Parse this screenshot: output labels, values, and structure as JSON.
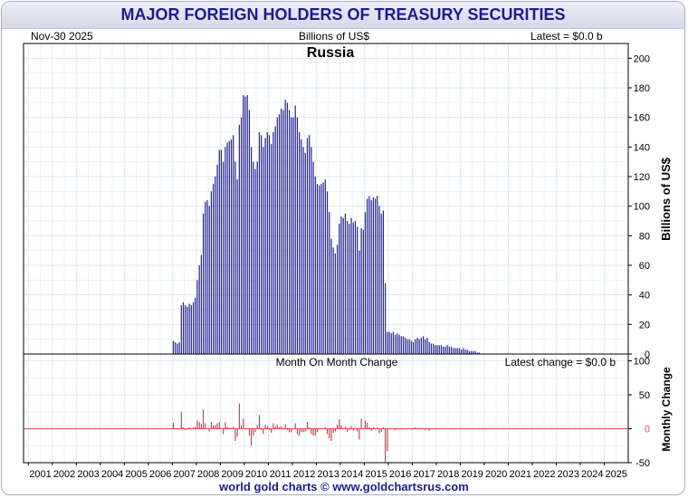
{
  "title": "MAJOR FOREIGN HOLDERS OF TREASURY SECURITIES",
  "date_label": "Nov-30  2025",
  "units_label": "Billions of US$",
  "latest_label": "Latest = $0.0 b",
  "footer": "world gold charts © www.goldchartsrus.com",
  "colors": {
    "bars": "#1c1cb4",
    "change": "#d42020",
    "zero_line": "#e05050",
    "title": "#1c1c8c"
  },
  "chart_data": [
    {
      "type": "bar",
      "title": "Russia",
      "ylabel": "Billions of US$",
      "ylim": [
        0,
        210
      ],
      "yticks": [
        0,
        20,
        40,
        60,
        80,
        100,
        120,
        140,
        160,
        180,
        200
      ],
      "x_start_year": 2000.8,
      "x_end_year": 2026.0,
      "bar_step_months": 1,
      "series_start": 2007.0,
      "values": [
        9,
        8,
        7,
        8,
        33,
        35,
        33,
        32,
        34,
        33,
        35,
        38,
        50,
        60,
        67,
        95,
        103,
        104,
        100,
        110,
        115,
        120,
        128,
        138,
        138,
        130,
        140,
        143,
        144,
        145,
        148,
        130,
        118,
        155,
        160,
        175,
        174,
        175,
        165,
        140,
        130,
        125,
        130,
        150,
        148,
        140,
        146,
        150,
        148,
        142,
        150,
        154,
        160,
        162,
        166,
        165,
        172,
        170,
        165,
        160,
        160,
        168,
        160,
        150,
        145,
        140,
        136,
        146,
        148,
        140,
        130,
        120,
        115,
        114,
        115,
        116,
        118,
        110,
        96,
        78,
        72,
        68,
        74,
        88,
        93,
        92,
        95,
        90,
        88,
        92,
        89,
        90,
        86,
        70,
        85,
        84,
        96,
        105,
        107,
        104,
        106,
        105,
        107,
        100,
        95,
        97,
        48,
        15,
        15,
        14,
        15,
        13,
        14,
        13,
        12,
        12,
        11,
        10,
        10,
        9,
        8,
        10,
        11,
        10,
        11,
        12,
        10,
        11,
        8,
        7,
        7,
        6,
        6,
        6,
        6,
        5,
        5,
        6,
        5,
        5,
        4,
        4,
        4,
        4,
        3,
        4,
        3,
        3,
        2,
        2,
        2,
        2,
        1,
        1,
        0,
        0,
        0,
        0,
        0,
        0,
        0,
        0,
        0,
        0,
        0,
        0,
        0,
        0,
        0,
        0,
        0,
        0,
        0,
        0,
        0,
        0,
        0,
        0,
        0,
        0,
        0,
        0,
        0,
        0,
        0,
        0,
        0,
        0,
        0,
        0,
        0,
        0,
        0,
        0,
        0,
        0,
        0,
        0,
        0,
        0,
        0,
        0,
        0,
        0,
        0,
        0,
        0,
        0,
        0,
        0,
        0,
        0,
        0,
        0,
        0,
        0,
        0,
        0
      ]
    },
    {
      "type": "bar",
      "title": "Month On Month Change",
      "latest_change_label": "Latest change = $0.0 b",
      "ylabel": "Monthly Change",
      "ylim": [
        -50,
        110
      ],
      "yticks": [
        -50,
        0,
        50,
        100
      ],
      "x_tick_labels": [
        "2001",
        "2002",
        "2003",
        "2004",
        "2005",
        "2006",
        "2007",
        "2008",
        "2009",
        "2010",
        "2011",
        "2012",
        "2013",
        "2014",
        "2015",
        "2016",
        "2017",
        "2018",
        "2019",
        "2020",
        "2021",
        "2022",
        "2023",
        "2024",
        "2025"
      ]
    }
  ]
}
